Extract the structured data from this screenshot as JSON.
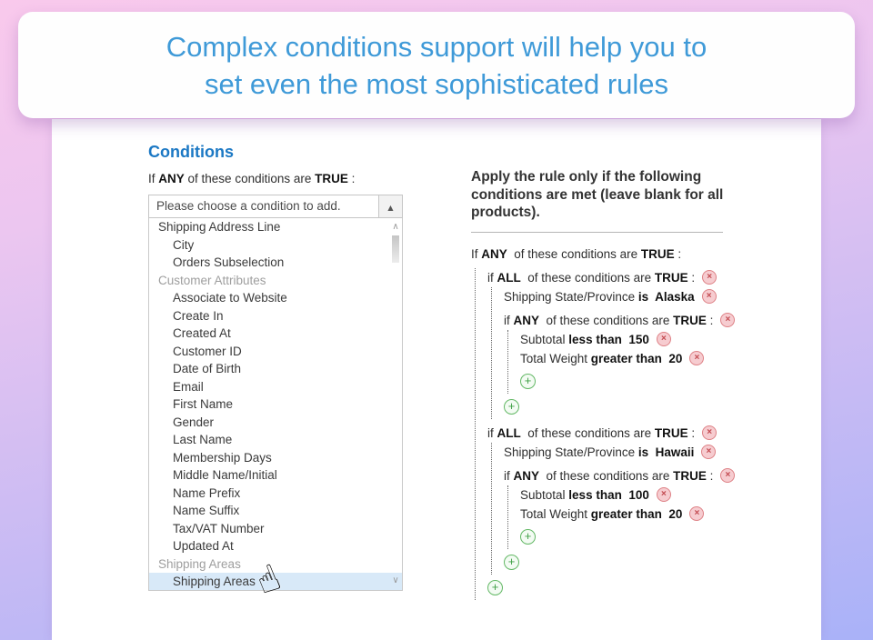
{
  "banner": {
    "line1": "Complex conditions support will help you to",
    "line2": "set even the most sophisticated rules"
  },
  "left": {
    "heading": "Conditions",
    "intro": {
      "part1": "If ",
      "bold1": "ANY",
      "part2": " of these conditions are ",
      "bold2": "TRUE",
      "part3": " :"
    },
    "dropdown": {
      "placeholder": "Please choose a condition to add.",
      "options": [
        {
          "label": "Shipping Address Line",
          "type": "top"
        },
        {
          "label": "City",
          "type": "item"
        },
        {
          "label": "Orders Subselection",
          "type": "item"
        },
        {
          "label": "Customer Attributes",
          "type": "group"
        },
        {
          "label": "Associate to Website",
          "type": "item"
        },
        {
          "label": "Create In",
          "type": "item"
        },
        {
          "label": "Created At",
          "type": "item"
        },
        {
          "label": "Customer ID",
          "type": "item"
        },
        {
          "label": "Date of Birth",
          "type": "item"
        },
        {
          "label": "Email",
          "type": "item"
        },
        {
          "label": "First Name",
          "type": "item"
        },
        {
          "label": "Gender",
          "type": "item"
        },
        {
          "label": "Last Name",
          "type": "item"
        },
        {
          "label": "Membership Days",
          "type": "item"
        },
        {
          "label": "Middle Name/Initial",
          "type": "item"
        },
        {
          "label": "Name Prefix",
          "type": "item"
        },
        {
          "label": "Name Suffix",
          "type": "item"
        },
        {
          "label": "Tax/VAT Number",
          "type": "item"
        },
        {
          "label": "Updated At",
          "type": "item"
        },
        {
          "label": "Shipping Areas",
          "type": "group"
        },
        {
          "label": "Shipping Areas",
          "type": "item",
          "selected": true
        }
      ]
    }
  },
  "right": {
    "heading": "Apply the rule only if the following conditions are met (leave blank for all products).",
    "tree": {
      "kind": "root",
      "removable": false,
      "segments": [
        {
          "t": "If "
        },
        {
          "t": "ANY",
          "b": true
        },
        {
          "t": "  of these conditions are "
        },
        {
          "t": "TRUE",
          "b": true
        },
        {
          "t": " :"
        }
      ],
      "children": [
        {
          "kind": "group",
          "removable": true,
          "segments": [
            {
              "t": "if "
            },
            {
              "t": "ALL",
              "b": true
            },
            {
              "t": "  of these conditions are "
            },
            {
              "t": "TRUE",
              "b": true
            },
            {
              "t": " :"
            }
          ],
          "children": [
            {
              "kind": "cond",
              "removable": true,
              "segments": [
                {
                  "t": "Shipping State/Province "
                },
                {
                  "t": "is",
                  "b": true
                },
                {
                  "t": "  Alaska",
                  "b": true
                }
              ]
            },
            {
              "kind": "group",
              "removable": true,
              "segments": [
                {
                  "t": "if "
                },
                {
                  "t": "ANY",
                  "b": true
                },
                {
                  "t": "  of these conditions are "
                },
                {
                  "t": "TRUE",
                  "b": true
                },
                {
                  "t": " :"
                }
              ],
              "children": [
                {
                  "kind": "cond",
                  "removable": true,
                  "segments": [
                    {
                      "t": "Subtotal "
                    },
                    {
                      "t": "less than",
                      "b": true
                    },
                    {
                      "t": "  150",
                      "b": true
                    }
                  ]
                },
                {
                  "kind": "cond",
                  "removable": true,
                  "segments": [
                    {
                      "t": "Total Weight "
                    },
                    {
                      "t": "greater than",
                      "b": true
                    },
                    {
                      "t": "  20",
                      "b": true
                    }
                  ]
                },
                {
                  "kind": "add"
                }
              ]
            },
            {
              "kind": "add"
            }
          ]
        },
        {
          "kind": "group",
          "removable": true,
          "segments": [
            {
              "t": "if "
            },
            {
              "t": "ALL",
              "b": true
            },
            {
              "t": "  of these conditions are "
            },
            {
              "t": "TRUE",
              "b": true
            },
            {
              "t": " :"
            }
          ],
          "children": [
            {
              "kind": "cond",
              "removable": true,
              "segments": [
                {
                  "t": "Shipping State/Province "
                },
                {
                  "t": "is",
                  "b": true
                },
                {
                  "t": "  Hawaii",
                  "b": true
                }
              ]
            },
            {
              "kind": "group",
              "removable": true,
              "segments": [
                {
                  "t": "if "
                },
                {
                  "t": "ANY",
                  "b": true
                },
                {
                  "t": "  of these conditions are "
                },
                {
                  "t": "TRUE",
                  "b": true
                },
                {
                  "t": " :"
                }
              ],
              "children": [
                {
                  "kind": "cond",
                  "removable": true,
                  "segments": [
                    {
                      "t": "Subtotal "
                    },
                    {
                      "t": "less than",
                      "b": true
                    },
                    {
                      "t": "  100",
                      "b": true
                    }
                  ]
                },
                {
                  "kind": "cond",
                  "removable": true,
                  "segments": [
                    {
                      "t": "Total Weight "
                    },
                    {
                      "t": "greater than",
                      "b": true
                    },
                    {
                      "t": "  20",
                      "b": true
                    }
                  ]
                },
                {
                  "kind": "add"
                }
              ]
            },
            {
              "kind": "add"
            }
          ]
        },
        {
          "kind": "add"
        }
      ]
    }
  },
  "icons": {
    "select_toggle": "▲",
    "scroll_up": "∧",
    "scroll_down": "∨",
    "remove": "×",
    "add": "+",
    "cursor": "☝"
  },
  "colors": {
    "banner_text": "#3f9ad8",
    "heading_blue": "#1b78c4",
    "remove_red": "#c2494f",
    "add_green": "#3f9f46",
    "selected_option_bg": "#d8e9f8"
  }
}
